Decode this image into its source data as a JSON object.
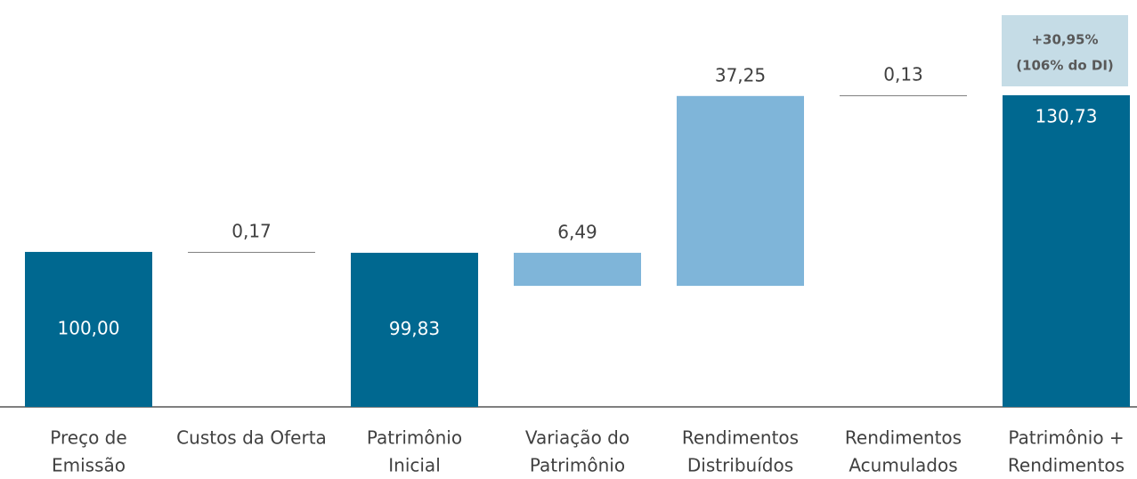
{
  "chart_data": {
    "type": "waterfall",
    "categories": [
      [
        "Preço de",
        "Emissão"
      ],
      [
        "Custos da Oferta"
      ],
      [
        "Patrimônio",
        "Inicial"
      ],
      [
        "Variação do",
        "Patrimônio"
      ],
      [
        "Rendimentos",
        "Distribuídos"
      ],
      [
        "Rendimentos",
        "Acumulados"
      ],
      [
        "Patrimônio +",
        "Rendimentos"
      ]
    ],
    "values": [
      100,
      -0.17,
      99.83,
      -6.49,
      37.25,
      0.13,
      130.73
    ],
    "value_labels": [
      "100,00",
      "0,17",
      "99,83",
      "6,49",
      "37,25",
      "0,13",
      "130,73"
    ],
    "kinds": [
      "total",
      "delta",
      "total",
      "delta",
      "delta",
      "delta",
      "total"
    ],
    "colors": [
      "#006890",
      "#7f7f7f",
      "#006890",
      "#7fb5d9",
      "#7fb5d9",
      "#7f7f7f",
      "#006890"
    ],
    "ylim": [
      69.6,
      130.73
    ],
    "annotation": [
      "+30,95%",
      "(106% do DI)"
    ]
  }
}
